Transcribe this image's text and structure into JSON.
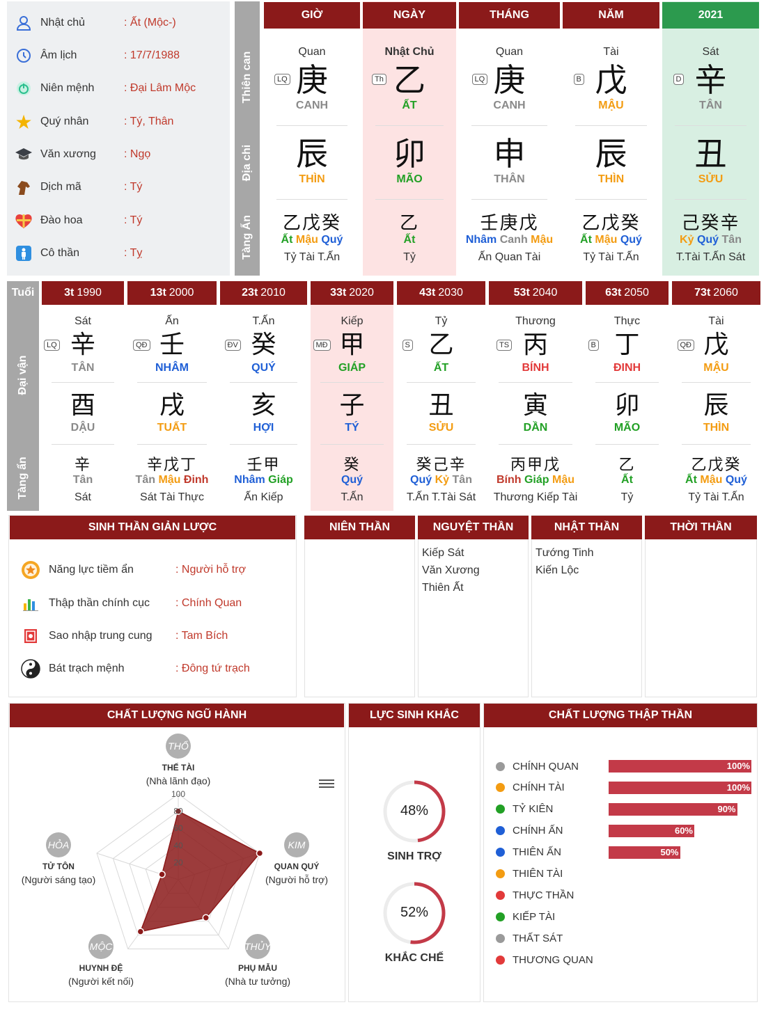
{
  "info": {
    "rows": [
      {
        "label": "Nhật chủ",
        "value": ": Ất (Mộc-)",
        "icon": "user-icon"
      },
      {
        "label": "Âm lịch",
        "value": ": 17/7/1988",
        "icon": "clock-icon"
      },
      {
        "label": "Niên mệnh",
        "value": ": Đại Lâm Mộc",
        "icon": "power-icon"
      },
      {
        "label": "Quý nhân",
        "value": ": Tý, Thân",
        "icon": "star-icon"
      },
      {
        "label": "Văn xương",
        "value": ": Ngọ",
        "icon": "graduation-cap-icon"
      },
      {
        "label": "Dịch mã",
        "value": ": Tý",
        "icon": "horse-icon"
      },
      {
        "label": "Đào hoa",
        "value": ": Tý",
        "icon": "heart-gift-icon"
      },
      {
        "label": "Cô thần",
        "value": ": Tỵ",
        "icon": "person-icon"
      }
    ]
  },
  "pillars": {
    "side_labels": [
      "Thiên can",
      "Địa chi",
      "Tàng Ẩn"
    ],
    "columns": [
      {
        "head": "GIỜ",
        "god": "Quan",
        "tag": "LQ",
        "stem": "庚",
        "stem_name": "CANH",
        "branch": "辰",
        "branch_name": "THÌN",
        "tang_ch": "乙戊癸",
        "tang_parts": [
          "Ất",
          "Mậu",
          "Quý"
        ],
        "tang_bottom": "Tỷ Tài T.Ấn"
      },
      {
        "head": "NGÀY",
        "god": "Nhật Chủ",
        "tag": "Th",
        "stem": "乙",
        "stem_name": "ẤT",
        "branch": "卯",
        "branch_name": "MÃO",
        "tang_ch": "乙",
        "tang_parts": [
          "Ất"
        ],
        "tang_bottom": "Tỷ"
      },
      {
        "head": "THÁNG",
        "god": "Quan",
        "tag": "LQ",
        "stem": "庚",
        "stem_name": "CANH",
        "branch": "申",
        "branch_name": "THÂN",
        "tang_ch": "壬庚戊",
        "tang_parts": [
          "Nhâm",
          "Canh",
          "Mậu"
        ],
        "tang_bottom": "Ấn Quan Tài"
      },
      {
        "head": "NĂM",
        "god": "Tài",
        "tag": "B",
        "stem": "戊",
        "stem_name": "MẬU",
        "branch": "辰",
        "branch_name": "THÌN",
        "tang_ch": "乙戊癸",
        "tang_parts": [
          "Ất",
          "Mậu",
          "Quý"
        ],
        "tang_bottom": "Tỷ Tài T.Ấn"
      },
      {
        "head": "2021",
        "god": "Sát",
        "tag": "D",
        "stem": "辛",
        "stem_name": "TÂN",
        "branch": "丑",
        "branch_name": "SỬU",
        "tang_ch": "己癸辛",
        "tang_parts": [
          "Kỷ",
          "Quý",
          "Tân"
        ],
        "tang_bottom": "T.Tài T.Ấn Sát"
      }
    ]
  },
  "daivan": {
    "corner": "Tuổi",
    "side_labels": [
      "Đại vận",
      "Tàng ẩn"
    ],
    "columns": [
      {
        "age": "3t",
        "year": "1990",
        "god": "Sát",
        "tag": "LQ",
        "stem": "辛",
        "stem_name": "TÂN",
        "branch": "酉",
        "branch_name": "DẬU",
        "tang_ch": "辛",
        "tang_parts": [
          "Tân"
        ],
        "tang_bottom": "Sát"
      },
      {
        "age": "13t",
        "year": "2000",
        "god": "Ấn",
        "tag": "QĐ",
        "stem": "壬",
        "stem_name": "NHÂM",
        "branch": "戌",
        "branch_name": "TUẤT",
        "tang_ch": "辛戊丁",
        "tang_parts": [
          "Tân",
          "Mậu",
          "Đinh"
        ],
        "tang_bottom": "Sát Tài Thực"
      },
      {
        "age": "23t",
        "year": "2010",
        "god": "T.Ấn",
        "tag": "ĐV",
        "stem": "癸",
        "stem_name": "QUÝ",
        "branch": "亥",
        "branch_name": "HỢI",
        "tang_ch": "壬甲",
        "tang_parts": [
          "Nhâm",
          "Giáp"
        ],
        "tang_bottom": "Ấn Kiếp"
      },
      {
        "age": "33t",
        "year": "2020",
        "god": "Kiếp",
        "tag": "MĐ",
        "stem": "甲",
        "stem_name": "GIÁP",
        "branch": "子",
        "branch_name": "TÝ",
        "tang_ch": "癸",
        "tang_parts": [
          "Quý"
        ],
        "tang_bottom": "T.Ấn"
      },
      {
        "age": "43t",
        "year": "2030",
        "god": "Tỷ",
        "tag": "S",
        "stem": "乙",
        "stem_name": "ẤT",
        "branch": "丑",
        "branch_name": "SỬU",
        "tang_ch": "癸己辛",
        "tang_parts": [
          "Quý",
          "Kỷ",
          "Tân"
        ],
        "tang_bottom": "T.Ấn T.Tài Sát"
      },
      {
        "age": "53t",
        "year": "2040",
        "god": "Thương",
        "tag": "TS",
        "stem": "丙",
        "stem_name": "BÍNH",
        "branch": "寅",
        "branch_name": "DẦN",
        "tang_ch": "丙甲戊",
        "tang_parts": [
          "Bính",
          "Giáp",
          "Mậu"
        ],
        "tang_bottom": "Thương Kiếp Tài"
      },
      {
        "age": "63t",
        "year": "2050",
        "god": "Thực",
        "tag": "B",
        "stem": "丁",
        "stem_name": "ĐINH",
        "branch": "卯",
        "branch_name": "MÃO",
        "tang_ch": "乙",
        "tang_parts": [
          "Ất"
        ],
        "tang_bottom": "Tỷ"
      },
      {
        "age": "73t",
        "year": "2060",
        "god": "Tài",
        "tag": "QĐ",
        "stem": "戊",
        "stem_name": "MẬU",
        "branch": "辰",
        "branch_name": "THÌN",
        "tang_ch": "乙戊癸",
        "tang_parts": [
          "Ất",
          "Mậu",
          "Quý"
        ],
        "tang_bottom": "Tỷ Tài T.Ấn"
      }
    ]
  },
  "sinhthan": {
    "title": "SINH THẦN GIẢN LƯỢC",
    "rows": [
      {
        "label": "Năng lực tiềm ẩn",
        "value": ": Người hỗ trợ",
        "icon": "badge-star-icon"
      },
      {
        "label": "Thập thần chính cục",
        "value": ": Chính Quan",
        "icon": "bar-chart-icon"
      },
      {
        "label": "Sao nhập trung cung",
        "value": ": Tam Bích",
        "icon": "red-seal-icon"
      },
      {
        "label": "Bát trạch mệnh",
        "value": ": Đông tứ trạch",
        "icon": "yin-yang-icon"
      }
    ]
  },
  "than": {
    "nien": {
      "title": "NIÊN THẦN",
      "items": []
    },
    "nguyet": {
      "title": "NGUYỆT THẦN",
      "items": [
        "Kiếp Sát",
        "Văn Xương",
        "Thiên Ất"
      ]
    },
    "nhat": {
      "title": "NHẬT THẦN",
      "items": [
        "Tướng Tinh",
        "Kiến Lộc"
      ]
    },
    "thoi": {
      "title": "THỜI THẦN",
      "items": []
    }
  },
  "nguhanh": {
    "title": "CHẤT LƯỢNG NGŨ HÀNH",
    "menu_icon": "hamburger-menu-icon",
    "chart_data": {
      "type": "radar",
      "axes": [
        "THỔ",
        "KIM",
        "THỦY",
        "MỘC",
        "HỎA"
      ],
      "values": [
        80,
        100,
        55,
        75,
        20
      ],
      "rmax": 100,
      "ticks": [
        "100",
        "80",
        "60",
        "40",
        "20"
      ]
    },
    "nodes": [
      {
        "element": "THỔ",
        "name": "THẾ TÀI",
        "desc": "(Nhà lãnh đạo)"
      },
      {
        "element": "KIM",
        "name": "QUAN QUÝ",
        "desc": "(Người hỗ trợ)"
      },
      {
        "element": "THỦY",
        "name": "PHỤ MẪU",
        "desc": "(Nhà tư tưởng)"
      },
      {
        "element": "MỘC",
        "name": "HUYNH ĐỆ",
        "desc": "(Người kết nối)"
      },
      {
        "element": "HỎA",
        "name": "TỬ TÔN",
        "desc": "(Người sáng tạo)"
      }
    ]
  },
  "lucsinh": {
    "title": "LỰC SINH KHẮC",
    "items": [
      {
        "percent": 48,
        "label_pct": "48%",
        "label": "SINH TRỢ"
      },
      {
        "percent": 52,
        "label_pct": "52%",
        "label": "KHẮC CHẾ"
      }
    ]
  },
  "thapthan": {
    "title": "CHẤT LƯỢNG THẬP THẦN",
    "chart_data": {
      "type": "bar",
      "categories": [
        "CHÍNH QUAN",
        "CHÍNH TÀI",
        "TỶ KIÊN",
        "CHÍNH ẤN",
        "THIÊN ẤN",
        "THIÊN TÀI",
        "THỰC THẦN",
        "KIẾP TÀI",
        "THẤT SÁT",
        "THƯƠNG QUAN"
      ],
      "values": [
        100,
        100,
        90,
        60,
        50,
        0,
        0,
        0,
        0,
        0
      ],
      "labels": [
        "100%",
        "100%",
        "90%",
        "60%",
        "50%",
        "",
        "",
        "",
        "",
        ""
      ],
      "dot_colors": [
        "#9a9a9a",
        "#f39c12",
        "#22a025",
        "#1f5fd6",
        "#1f5fd6",
        "#f39c12",
        "#e23a3a",
        "#22a025",
        "#9a9a9a",
        "#e23a3a"
      ]
    }
  },
  "colors": {
    "header": "#8b1a1a",
    "accent": "#c0392b",
    "bar": "#c33a48"
  }
}
